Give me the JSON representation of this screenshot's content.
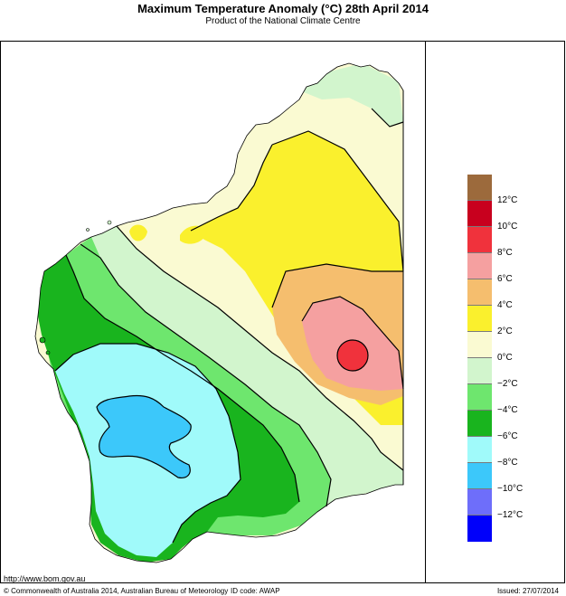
{
  "header": {
    "title": "Maximum Temperature Anomaly (°C)  28th April 2014",
    "subtitle": "Product of the National Climate Centre"
  },
  "legend": {
    "colors": [
      "#9c6a3c",
      "#c8001e",
      "#f0323c",
      "#f5a0a0",
      "#f5be6e",
      "#faf02d",
      "#fafad2",
      "#d2f5cd",
      "#6ee66e",
      "#19b41e",
      "#a0fafa",
      "#3cc8fa",
      "#6e6efa",
      "#0000fa"
    ],
    "labels": [
      "12°C",
      "10°C",
      "8°C",
      "6°C",
      "4°C",
      "2°C",
      "0°C",
      "−2°C",
      "−4°C",
      "−6°C",
      "−8°C",
      "−10°C",
      "−12°C"
    ]
  },
  "map": {
    "region": "Western Australia",
    "colors": {
      "ocean": "#ffffff",
      "anom_neg_10_to_8": "#3cc8fa",
      "anom_neg_8_to_6": "#a0fafa",
      "anom_neg_6_to_4": "#19b41e",
      "anom_neg_4_to_2": "#6ee66e",
      "anom_neg_2_to_0": "#d2f5cd",
      "anom_0_to_2": "#fafad2",
      "anom_2_to_4": "#faf02d",
      "anom_4_to_6": "#f5be6e",
      "anom_6_to_8": "#f5a0a0",
      "anom_8_to_10": "#f0323c"
    }
  },
  "footer": {
    "url": "http://www.bom.gov.au",
    "copyright": "© Commonwealth of Australia 2014, Australian Bureau of Meteorology",
    "id_code": "ID code: AWAP",
    "issued": "Issued: 27/07/2014"
  }
}
